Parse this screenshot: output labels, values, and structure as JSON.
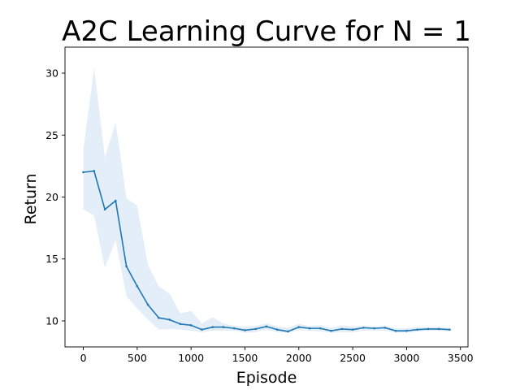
{
  "chart_data": {
    "type": "line",
    "title": "A2C Learning Curve for N = 1",
    "xlabel": "Episode",
    "ylabel": "Return",
    "xlim": [
      -170,
      3570
    ],
    "ylim": [
      7.9,
      32.1
    ],
    "x_ticks": [
      "0",
      "500",
      "1000",
      "1500",
      "2000",
      "2500",
      "3000",
      "3500"
    ],
    "y_ticks": [
      "10",
      "15",
      "20",
      "25",
      "30"
    ],
    "grid": false,
    "legend": "none",
    "line_color": "#1f77b4",
    "band_color": "#e3eef8",
    "series": [
      {
        "x": [
          0,
          100,
          200,
          300,
          400,
          500,
          600,
          700,
          800,
          900,
          1000,
          1100,
          1200,
          1300,
          1400,
          1500,
          1600,
          1700,
          1800,
          1900,
          2000,
          2100,
          2200,
          2300,
          2400,
          2500,
          2600,
          2700,
          2800,
          2900,
          3000,
          3100,
          3200,
          3300,
          3400
        ],
        "values": [
          22.0,
          22.1,
          19.0,
          19.7,
          14.4,
          12.8,
          11.3,
          10.25,
          10.1,
          9.75,
          9.65,
          9.3,
          9.5,
          9.5,
          9.4,
          9.25,
          9.35,
          9.55,
          9.3,
          9.15,
          9.5,
          9.4,
          9.4,
          9.2,
          9.35,
          9.3,
          9.45,
          9.4,
          9.45,
          9.2,
          9.2,
          9.3,
          9.35,
          9.35,
          9.3
        ],
        "upper": [
          23.8,
          30.4,
          23.2,
          26.0,
          19.9,
          19.3,
          14.5,
          12.8,
          12.2,
          10.6,
          10.8,
          9.8,
          10.3,
          9.8,
          9.6,
          9.55,
          9.6,
          9.8,
          9.55,
          9.45,
          9.75,
          9.6,
          9.65,
          9.45,
          9.65,
          9.55,
          9.6,
          9.55,
          9.6,
          9.4,
          9.4,
          9.5,
          9.5,
          9.5,
          9.45
        ],
        "lower": [
          19.0,
          18.5,
          14.3,
          16.5,
          12.0,
          11.0,
          10.1,
          9.3,
          9.35,
          9.3,
          9.2,
          9.1,
          9.2,
          9.2,
          9.2,
          9.05,
          9.1,
          9.3,
          9.1,
          9.05,
          9.25,
          9.2,
          9.15,
          9.05,
          9.1,
          9.1,
          9.2,
          9.2,
          9.2,
          9.05,
          9.05,
          9.15,
          9.2,
          9.2,
          9.15
        ]
      }
    ]
  }
}
